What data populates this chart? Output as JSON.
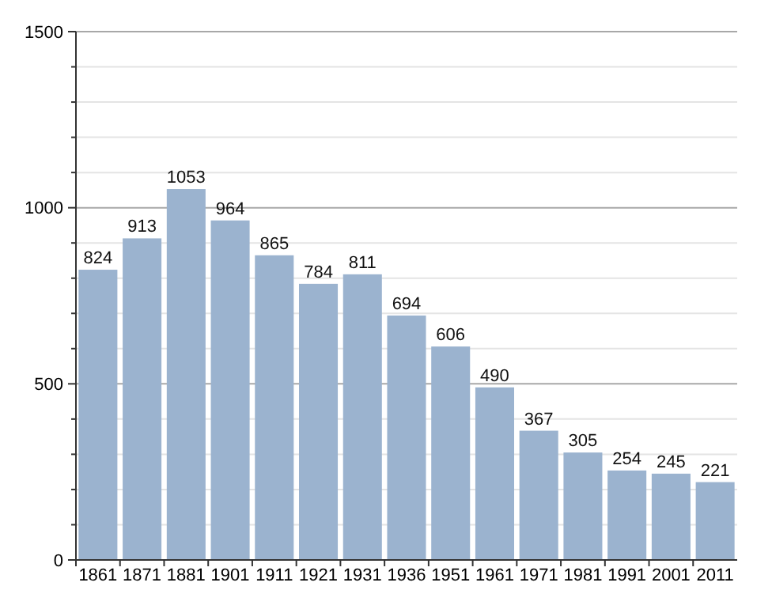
{
  "chart_data": {
    "type": "bar",
    "categories": [
      "1861",
      "1871",
      "1881",
      "1901",
      "1911",
      "1921",
      "1931",
      "1936",
      "1951",
      "1961",
      "1971",
      "1981",
      "1991",
      "2001",
      "2011"
    ],
    "values": [
      824,
      913,
      1053,
      964,
      865,
      784,
      811,
      694,
      606,
      490,
      367,
      305,
      254,
      245,
      221
    ],
    "color": "#9bb3cf",
    "data_labels": true,
    "grid": "y",
    "ylim": [
      0,
      1500
    ],
    "yticks": [
      0,
      {
        "value": 100,
        "label": null
      },
      {
        "value": 200,
        "label": null
      },
      {
        "value": 300,
        "label": null
      },
      {
        "value": 400,
        "label": null
      },
      500,
      {
        "value": 600,
        "label": null
      },
      {
        "value": 700,
        "label": null
      },
      {
        "value": 800,
        "label": null
      },
      {
        "value": 900,
        "label": null
      },
      1000,
      {
        "value": 1100,
        "label": null
      },
      {
        "value": 1200,
        "label": null
      },
      {
        "value": 1300,
        "label": null
      },
      {
        "value": 1400,
        "label": null
      },
      1500
    ]
  }
}
